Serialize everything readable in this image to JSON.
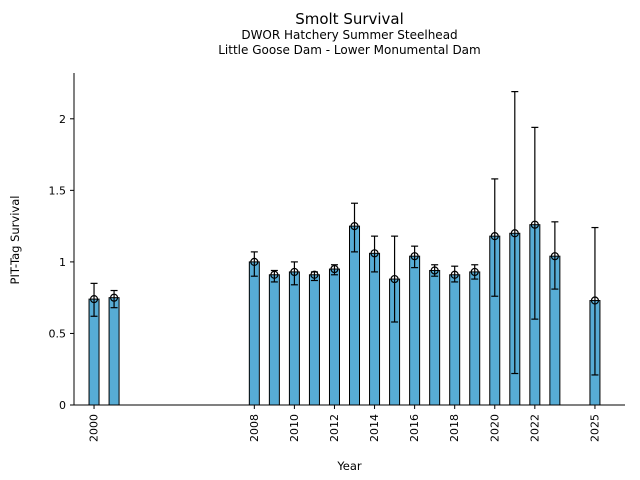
{
  "chart_data": {
    "type": "bar",
    "title": "Smolt Survival",
    "subtitle1": "DWOR Hatchery Summer Steelhead",
    "subtitle2": "Little Goose Dam - Lower Monumental Dam",
    "xlabel": "Year",
    "ylabel": "PIT-Tag Survival",
    "bar_color": "#57ACD5",
    "bar_edge_color": "#000000",
    "error_bar_color": "#000000",
    "xlim": [
      1999,
      2026.5
    ],
    "ylim": [
      0,
      2.32
    ],
    "yticks": [
      0,
      0.5,
      1,
      1.5,
      2
    ],
    "xticks": [
      2000,
      2008,
      2010,
      2012,
      2014,
      2016,
      2018,
      2020,
      2022,
      2025
    ],
    "grid": false,
    "legend": "none",
    "points": [
      {
        "year": 2000,
        "survival": 0.74,
        "ci_low": 0.62,
        "ci_high": 0.85
      },
      {
        "year": 2001,
        "survival": 0.75,
        "ci_low": 0.68,
        "ci_high": 0.8
      },
      {
        "year": 2008,
        "survival": 1.0,
        "ci_low": 0.9,
        "ci_high": 1.07
      },
      {
        "year": 2009,
        "survival": 0.91,
        "ci_low": 0.86,
        "ci_high": 0.94
      },
      {
        "year": 2010,
        "survival": 0.93,
        "ci_low": 0.84,
        "ci_high": 1.0
      },
      {
        "year": 2011,
        "survival": 0.91,
        "ci_low": 0.87,
        "ci_high": 0.93
      },
      {
        "year": 2012,
        "survival": 0.95,
        "ci_low": 0.91,
        "ci_high": 0.98
      },
      {
        "year": 2013,
        "survival": 1.25,
        "ci_low": 1.07,
        "ci_high": 1.41
      },
      {
        "year": 2014,
        "survival": 1.06,
        "ci_low": 0.93,
        "ci_high": 1.18
      },
      {
        "year": 2015,
        "survival": 0.88,
        "ci_low": 0.58,
        "ci_high": 1.18
      },
      {
        "year": 2016,
        "survival": 1.04,
        "ci_low": 0.96,
        "ci_high": 1.11
      },
      {
        "year": 2017,
        "survival": 0.94,
        "ci_low": 0.9,
        "ci_high": 0.98
      },
      {
        "year": 2018,
        "survival": 0.91,
        "ci_low": 0.86,
        "ci_high": 0.97
      },
      {
        "year": 2019,
        "survival": 0.93,
        "ci_low": 0.88,
        "ci_high": 0.98
      },
      {
        "year": 2020,
        "survival": 1.18,
        "ci_low": 0.76,
        "ci_high": 1.58
      },
      {
        "year": 2021,
        "survival": 1.2,
        "ci_low": 0.22,
        "ci_high": 2.19
      },
      {
        "year": 2022,
        "survival": 1.26,
        "ci_low": 0.6,
        "ci_high": 1.94
      },
      {
        "year": 2023,
        "survival": 1.04,
        "ci_low": 0.81,
        "ci_high": 1.28
      },
      {
        "year": 2025,
        "survival": 0.73,
        "ci_low": 0.21,
        "ci_high": 1.24
      }
    ]
  }
}
